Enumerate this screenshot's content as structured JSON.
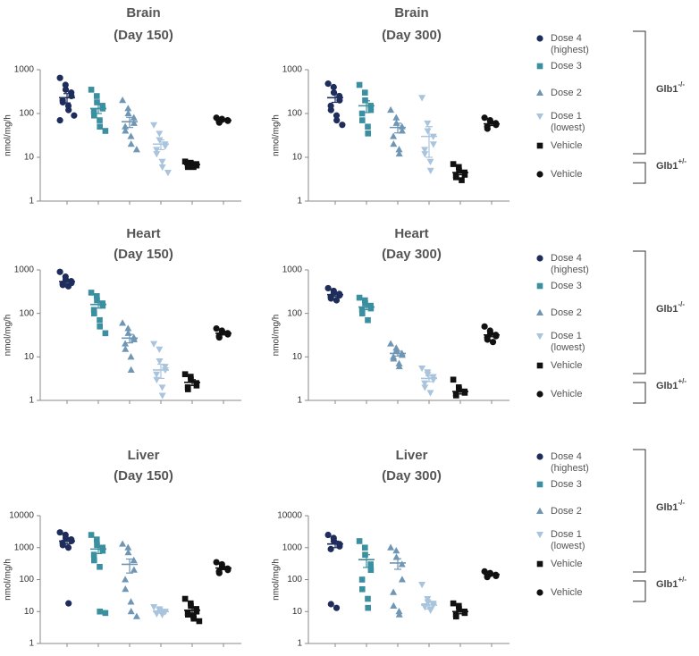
{
  "chart_data": [
    {
      "type": "strip",
      "title": "Brain",
      "subtitle": "(Day 150)",
      "ylabel": "nmol/mg/h",
      "log": true,
      "ylim": [
        1,
        1000
      ],
      "yticks": [
        1,
        10,
        100,
        1000
      ],
      "series": [
        {
          "color": "#1f2d5c",
          "marker": "circle",
          "values": [
            650,
            450,
            350,
            300,
            250,
            200,
            180,
            150,
            120,
            90,
            70
          ],
          "mean": 230,
          "sem": 55
        },
        {
          "color": "#3a8fa0",
          "marker": "square",
          "values": [
            350,
            250,
            180,
            150,
            130,
            110,
            90,
            70,
            50,
            40
          ],
          "mean": 130,
          "sem": 30
        },
        {
          "color": "#6f97b5",
          "marker": "triangle-up",
          "values": [
            200,
            130,
            100,
            80,
            60,
            50,
            40,
            30,
            20,
            15
          ],
          "mean": 65,
          "sem": 17
        },
        {
          "color": "#a9c4dc",
          "marker": "triangle-down",
          "values": [
            55,
            35,
            25,
            20,
            18,
            15,
            12,
            8,
            6,
            4.5
          ],
          "mean": 20,
          "sem": 5
        },
        {
          "color": "#111111",
          "marker": "square",
          "values": [
            8,
            7.5,
            7,
            7,
            6.5,
            6.5,
            6,
            6
          ],
          "mean": 6.8,
          "sem": 0.3
        },
        {
          "color": "#111111",
          "marker": "circle",
          "values": [
            80,
            75,
            72,
            70,
            68,
            65,
            62
          ],
          "mean": 70,
          "sem": 3
        }
      ]
    },
    {
      "type": "strip",
      "title": "Brain",
      "subtitle": "(Day 300)",
      "ylabel": "nmol/mg/h",
      "log": true,
      "ylim": [
        1,
        1000
      ],
      "yticks": [
        1,
        10,
        100,
        1000
      ],
      "series": [
        {
          "name": "Dose 4 (highest)",
          "color": "#1f2d5c",
          "marker": "circle",
          "values": [
            480,
            400,
            300,
            250,
            200,
            150,
            120,
            90,
            70,
            55
          ],
          "mean": 230,
          "sem": 50
        },
        {
          "name": "Dose 3",
          "color": "#3a8fa0",
          "marker": "square",
          "values": [
            450,
            300,
            200,
            150,
            120,
            100,
            70,
            50,
            35
          ],
          "mean": 150,
          "sem": 45
        },
        {
          "name": "Dose 2",
          "color": "#6f97b5",
          "marker": "triangle-up",
          "values": [
            120,
            80,
            60,
            50,
            40,
            30,
            20,
            15,
            12
          ],
          "mean": 48,
          "sem": 12
        },
        {
          "name": "Dose 1 (lowest)",
          "color": "#a9c4dc",
          "marker": "triangle-down",
          "values": [
            230,
            60,
            40,
            30,
            20,
            15,
            12,
            8,
            5
          ],
          "mean": 30,
          "sem": 20
        },
        {
          "name": "Vehicle",
          "color": "#111111",
          "marker": "square",
          "values": [
            7,
            6,
            5,
            4.5,
            4,
            3.8,
            3.5,
            3
          ],
          "mean": 4.5,
          "sem": 0.5
        },
        {
          "name": "Vehicle",
          "color": "#111111",
          "marker": "circle",
          "values": [
            80,
            70,
            65,
            60,
            55,
            50,
            45
          ],
          "mean": 58,
          "sem": 5
        }
      ],
      "groups": [
        {
          "label": "Glb1",
          "superscript": "-/-"
        },
        {
          "label": "Glb1",
          "superscript": "+/-"
        }
      ]
    },
    {
      "type": "strip",
      "title": "Heart",
      "subtitle": "(Day 150)",
      "ylabel": "nmol/mg/h",
      "log": true,
      "ylim": [
        1,
        1000
      ],
      "yticks": [
        1,
        10,
        100,
        1000
      ],
      "series": [
        {
          "color": "#1f2d5c",
          "marker": "circle",
          "values": [
            900,
            700,
            600,
            550,
            500,
            480,
            450,
            420
          ],
          "mean": 540,
          "sem": 50
        },
        {
          "color": "#3a8fa0",
          "marker": "square",
          "values": [
            300,
            250,
            200,
            170,
            150,
            120,
            100,
            70,
            50,
            35
          ],
          "mean": 160,
          "sem": 28
        },
        {
          "color": "#6f97b5",
          "marker": "triangle-up",
          "values": [
            60,
            45,
            35,
            28,
            25,
            20,
            15,
            10,
            5
          ],
          "mean": 27,
          "sem": 6
        },
        {
          "color": "#a9c4dc",
          "marker": "triangle-down",
          "values": [
            20,
            15,
            8,
            6,
            5,
            4,
            3,
            2,
            1.3
          ],
          "mean": 5,
          "sem": 1.8
        },
        {
          "color": "#111111",
          "marker": "square",
          "values": [
            4,
            3.5,
            3,
            2.5,
            2.2,
            2,
            1.8
          ],
          "mean": 2.6,
          "sem": 0.4
        },
        {
          "color": "#111111",
          "marker": "circle",
          "values": [
            45,
            40,
            38,
            35,
            33,
            30,
            28
          ],
          "mean": 35,
          "sem": 3
        }
      ]
    },
    {
      "type": "strip",
      "title": "Heart",
      "subtitle": "(Day 300)",
      "ylabel": "nmol/mg/h",
      "log": true,
      "ylim": [
        1,
        1000
      ],
      "yticks": [
        1,
        10,
        100,
        1000
      ],
      "series": [
        {
          "name": "Dose 4 (highest)",
          "color": "#1f2d5c",
          "marker": "circle",
          "values": [
            380,
            330,
            300,
            280,
            260,
            240,
            220,
            200
          ],
          "mean": 270,
          "sem": 25
        },
        {
          "name": "Dose 3",
          "color": "#3a8fa0",
          "marker": "square",
          "values": [
            230,
            200,
            170,
            150,
            130,
            120,
            100,
            70
          ],
          "mean": 140,
          "sem": 18
        },
        {
          "name": "Dose 2",
          "color": "#6f97b5",
          "marker": "triangle-up",
          "values": [
            20,
            16,
            14,
            12,
            11,
            10,
            9,
            7,
            6
          ],
          "mean": 12,
          "sem": 1.5
        },
        {
          "name": "Dose 1 (lowest)",
          "color": "#a9c4dc",
          "marker": "triangle-down",
          "values": [
            5.5,
            4.5,
            4,
            3.5,
            3,
            2.5,
            2,
            1.5
          ],
          "mean": 3.2,
          "sem": 0.5
        },
        {
          "name": "Vehicle",
          "color": "#111111",
          "marker": "square",
          "values": [
            3,
            2,
            1.8,
            1.6,
            1.5,
            1.4,
            1.3
          ],
          "mean": 1.6,
          "sem": 0.2
        },
        {
          "name": "Vehicle",
          "color": "#111111",
          "marker": "circle",
          "values": [
            50,
            40,
            35,
            32,
            30,
            28,
            25,
            22
          ],
          "mean": 32,
          "sem": 3
        }
      ],
      "groups": [
        {
          "label": "Glb1",
          "superscript": "-/-"
        },
        {
          "label": "Glb1",
          "superscript": "+/-"
        }
      ]
    },
    {
      "type": "strip",
      "title": "Liver",
      "subtitle": "(Day 150)",
      "ylabel": "nmol/mg/h",
      "log": true,
      "ylim": [
        1,
        10000
      ],
      "yticks": [
        1,
        10,
        100,
        1000,
        10000
      ],
      "series": [
        {
          "color": "#1f2d5c",
          "marker": "circle",
          "values": [
            3000,
            2500,
            2000,
            1800,
            1600,
            1400,
            1200,
            1000,
            18
          ],
          "mean": 1600,
          "sem": 300
        },
        {
          "color": "#3a8fa0",
          "marker": "square",
          "values": [
            2500,
            1800,
            1200,
            1000,
            800,
            600,
            400,
            250,
            10,
            9
          ],
          "mean": 900,
          "sem": 250
        },
        {
          "color": "#6f97b5",
          "marker": "triangle-up",
          "values": [
            1300,
            1000,
            700,
            400,
            200,
            100,
            50,
            20,
            10,
            7
          ],
          "mean": 300,
          "sem": 140
        },
        {
          "color": "#a9c4dc",
          "marker": "triangle-down",
          "values": [
            14,
            12,
            11,
            10,
            10,
            9,
            8.5,
            8
          ],
          "mean": 10,
          "sem": 0.7
        },
        {
          "color": "#111111",
          "marker": "square",
          "values": [
            25,
            18,
            15,
            12,
            10,
            9,
            8,
            7,
            6,
            5
          ],
          "mean": 11,
          "sem": 2
        },
        {
          "color": "#111111",
          "marker": "circle",
          "values": [
            350,
            300,
            250,
            220,
            200,
            180,
            160
          ],
          "mean": 230,
          "sem": 25
        }
      ]
    },
    {
      "type": "strip",
      "title": "Liver",
      "subtitle": "(Day 300)",
      "ylabel": "nmol/mg/h",
      "log": true,
      "ylim": [
        1,
        10000
      ],
      "yticks": [
        1,
        10,
        100,
        1000,
        10000
      ],
      "series": [
        {
          "name": "Dose 4 (highest)",
          "color": "#1f2d5c",
          "marker": "circle",
          "values": [
            2500,
            2000,
            1600,
            1300,
            1100,
            900,
            17,
            13
          ],
          "mean": 1300,
          "sem": 300
        },
        {
          "name": "Dose 3",
          "color": "#3a8fa0",
          "marker": "square",
          "values": [
            1600,
            1000,
            600,
            300,
            200,
            100,
            50,
            25,
            13
          ],
          "mean": 420,
          "sem": 180
        },
        {
          "name": "Dose 2",
          "color": "#6f97b5",
          "marker": "triangle-up",
          "values": [
            1000,
            800,
            500,
            300,
            100,
            40,
            15,
            10,
            8
          ],
          "mean": 330,
          "sem": 120
        },
        {
          "name": "Dose 1 (lowest)",
          "color": "#a9c4dc",
          "marker": "triangle-down",
          "values": [
            70,
            25,
            20,
            18,
            16,
            15,
            14,
            12,
            11
          ],
          "mean": 16,
          "sem": 4
        },
        {
          "name": "Vehicle",
          "color": "#111111",
          "marker": "square",
          "values": [
            18,
            15,
            12,
            10,
            9,
            8,
            7
          ],
          "mean": 10,
          "sem": 1.5
        },
        {
          "name": "Vehicle",
          "color": "#111111",
          "marker": "circle",
          "values": [
            180,
            160,
            150,
            140,
            130,
            120
          ],
          "mean": 145,
          "sem": 9
        }
      ],
      "groups": [
        {
          "label": "Glb1",
          "superscript": "-/-"
        },
        {
          "label": "Glb1",
          "superscript": "+/-"
        }
      ]
    }
  ]
}
